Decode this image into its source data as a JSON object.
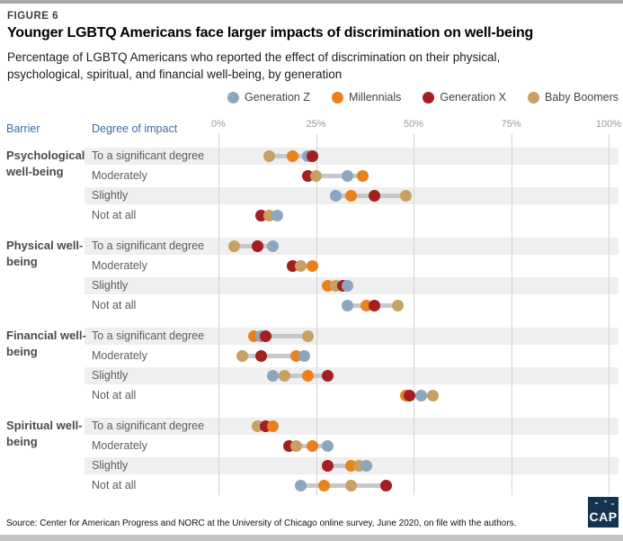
{
  "figure_label": "FIGURE 6",
  "title": "Younger LGBTQ Americans face larger impacts of discrimination on well-being",
  "subtitle": {
    "line1": "Percentage of LGBTQ Americans who reported the effect of discrimination on their physical,",
    "line2": "psychological, spiritual, and financial well-being, by generation"
  },
  "column_headers": {
    "barrier": "Barrier",
    "impact": "Degree of impact"
  },
  "source": "Source: Center for American Progress and NORC at the University of Chicago online survey, June 2020, on file with the authors.",
  "logo_text": "CAP",
  "colors": {
    "generation_z": "#8ca6bf",
    "millennials": "#e8821e",
    "generation_x": "#a41e22",
    "baby_boomers": "#c7a064",
    "row_band": "#efefef",
    "connector": "#c8c8c8",
    "gridline": "#d2d2d2",
    "header_blue": "#3a6ca3"
  },
  "chart_data": {
    "type": "scatter",
    "subtype": "dot-plot-dumbbell",
    "x_axis": {
      "range": [
        0,
        100
      ],
      "tick_values": [
        0,
        25,
        50,
        75,
        100
      ],
      "tick_labels": [
        "0%",
        "25%",
        "50%",
        "75%",
        "100%"
      ]
    },
    "legend_position": "top",
    "grid": "vertical",
    "series": [
      {
        "name": "Generation Z",
        "color": "#8ca6bf"
      },
      {
        "name": "Millennials",
        "color": "#e8821e"
      },
      {
        "name": "Generation X",
        "color": "#a41e22"
      },
      {
        "name": "Baby Boomers",
        "color": "#c7a064"
      }
    ],
    "groups": [
      {
        "label": "Psychological well-being",
        "rows": [
          {
            "label": "To a significant degree",
            "values": [
              23,
              19,
              24,
              13
            ]
          },
          {
            "label": "Moderately",
            "values": [
              33,
              37,
              23,
              25
            ]
          },
          {
            "label": "Slightly",
            "values": [
              30,
              34,
              40,
              48
            ]
          },
          {
            "label": "Not at all",
            "values": [
              15,
              11,
              11,
              13
            ]
          }
        ]
      },
      {
        "label": "Physical well-being",
        "rows": [
          {
            "label": "To a significant degree",
            "values": [
              14,
              10,
              10,
              4
            ]
          },
          {
            "label": "Moderately",
            "values": [
              19,
              24,
              19,
              21
            ]
          },
          {
            "label": "Slightly",
            "values": [
              33,
              28,
              32,
              30
            ]
          },
          {
            "label": "Not at all",
            "values": [
              33,
              38,
              40,
              46
            ]
          }
        ]
      },
      {
        "label": "Financial well-being",
        "rows": [
          {
            "label": "To a significant degree",
            "values": [
              11,
              9,
              12,
              23
            ]
          },
          {
            "label": "Moderately",
            "values": [
              22,
              20,
              11,
              6
            ]
          },
          {
            "label": "Slightly",
            "values": [
              14,
              23,
              28,
              17
            ]
          },
          {
            "label": "Not at all",
            "values": [
              52,
              48,
              49,
              55
            ]
          }
        ]
      },
      {
        "label": "Spiritual well-being",
        "rows": [
          {
            "label": "To a significant degree",
            "values": [
              12,
              14,
              12,
              10
            ]
          },
          {
            "label": "Moderately",
            "values": [
              28,
              24,
              18,
              20
            ]
          },
          {
            "label": "Slightly",
            "values": [
              38,
              34,
              28,
              36
            ]
          },
          {
            "label": "Not at all",
            "values": [
              21,
              27,
              43,
              34
            ]
          }
        ]
      }
    ]
  }
}
